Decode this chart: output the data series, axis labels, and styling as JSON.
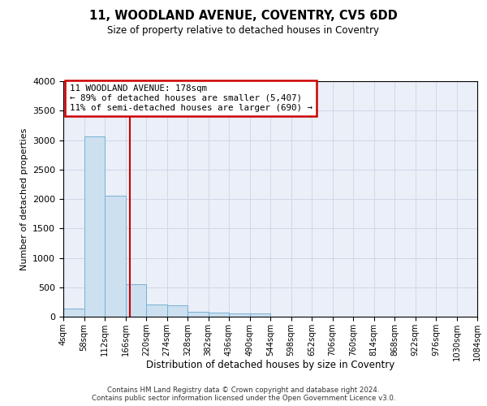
{
  "title": "11, WOODLAND AVENUE, COVENTRY, CV5 6DD",
  "subtitle": "Size of property relative to detached houses in Coventry",
  "xlabel": "Distribution of detached houses by size in Coventry",
  "ylabel": "Number of detached properties",
  "bin_edges": [
    4,
    58,
    112,
    166,
    220,
    274,
    328,
    382,
    436,
    490,
    544,
    598,
    652,
    706,
    760,
    814,
    868,
    922,
    976,
    1030,
    1084
  ],
  "bar_heights": [
    140,
    3060,
    2060,
    555,
    210,
    195,
    80,
    70,
    50,
    50,
    0,
    0,
    0,
    0,
    0,
    0,
    0,
    0,
    0,
    0
  ],
  "bar_color": "#cce0f0",
  "bar_edge_color": "#7ab0d4",
  "grid_color": "#d0d8e8",
  "background_color": "#eaeff8",
  "property_size": 178,
  "vline_color": "#cc0000",
  "annotation_text": "11 WOODLAND AVENUE: 178sqm\n← 89% of detached houses are smaller (5,407)\n11% of semi-detached houses are larger (690) →",
  "annotation_box_color": "#cc0000",
  "ylim": [
    0,
    4000
  ],
  "yticks": [
    0,
    500,
    1000,
    1500,
    2000,
    2500,
    3000,
    3500,
    4000
  ],
  "footer_line1": "Contains HM Land Registry data © Crown copyright and database right 2024.",
  "footer_line2": "Contains public sector information licensed under the Open Government Licence v3.0."
}
